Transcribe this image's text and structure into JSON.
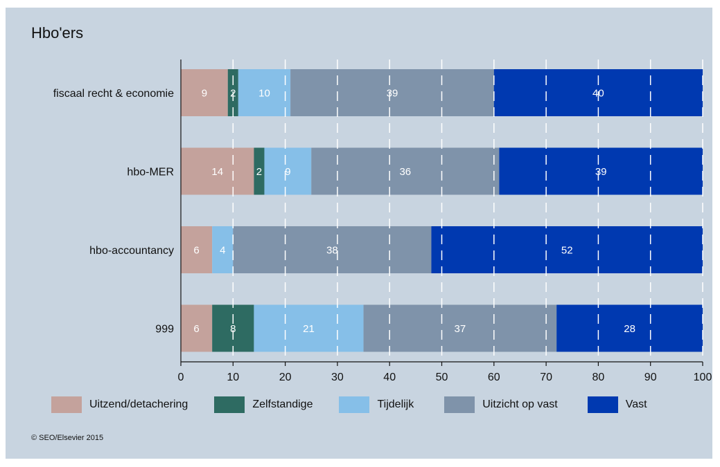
{
  "chart_data": {
    "type": "bar",
    "orientation": "horizontal",
    "stacked": true,
    "title": "Hbo'ers",
    "categories": [
      "fiscaal recht & economie",
      "hbo-MER",
      "hbo-accountancy",
      "999"
    ],
    "series": [
      {
        "name": "Uitzend/detachering",
        "color": "#c4a29c",
        "values": [
          9,
          14,
          6,
          6
        ]
      },
      {
        "name": "Zelfstandige",
        "color": "#2e6b62",
        "values": [
          2,
          2,
          0,
          8
        ]
      },
      {
        "name": "Tijdelijk",
        "color": "#86bfe8",
        "values": [
          10,
          9,
          4,
          21
        ]
      },
      {
        "name": "Uitzicht op vast",
        "color": "#7f93aa",
        "values": [
          39,
          36,
          38,
          37
        ]
      },
      {
        "name": "Vast",
        "color": "#0039b0",
        "values": [
          40,
          39,
          52,
          28
        ]
      }
    ],
    "xlim": [
      0,
      100
    ],
    "xticks": [
      "0",
      "10",
      "20",
      "30",
      "40",
      "50",
      "60",
      "70",
      "80",
      "90",
      "100"
    ],
    "grid": "vertical dashed white",
    "legend_position": "bottom"
  },
  "source": "© SEO/Elsevier 2015"
}
